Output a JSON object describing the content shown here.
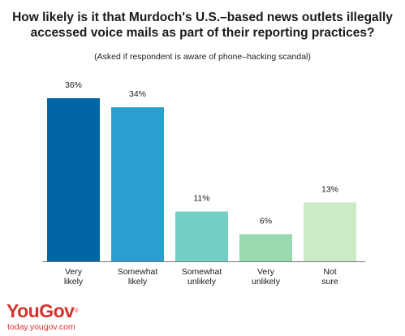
{
  "title_lines": [
    "How likely is it that Murdoch's U.S.–based news outlets illegally",
    "accessed voice mails as part of their reporting practices?"
  ],
  "subtitle": "(Asked if respondent is aware of phone–hacking scandal)",
  "brand": {
    "logo": "YouGov",
    "trademark": "®",
    "url": "today.yougov.com"
  },
  "colors": {
    "bar_1": "#0066a5",
    "bar_2": "#2a9fcf",
    "bar_3": "#73cec4",
    "bar_4": "#9ad9b0",
    "bar_5": "#cdeac6",
    "brand": "#d5332f"
  },
  "chart_data": {
    "type": "bar",
    "categories": [
      [
        "Very",
        "likely"
      ],
      [
        "Somewhat",
        "likely"
      ],
      [
        "Somewhat",
        "unlikely"
      ],
      [
        "Very",
        "unlikely"
      ],
      [
        "Not",
        "sure"
      ]
    ],
    "values": [
      36,
      34,
      11,
      6,
      13
    ],
    "data_labels": [
      "36%",
      "34%",
      "11%",
      "6%",
      "13%"
    ],
    "unit": "%",
    "ylim": [
      0,
      36
    ],
    "grid": false,
    "legend": "none"
  }
}
